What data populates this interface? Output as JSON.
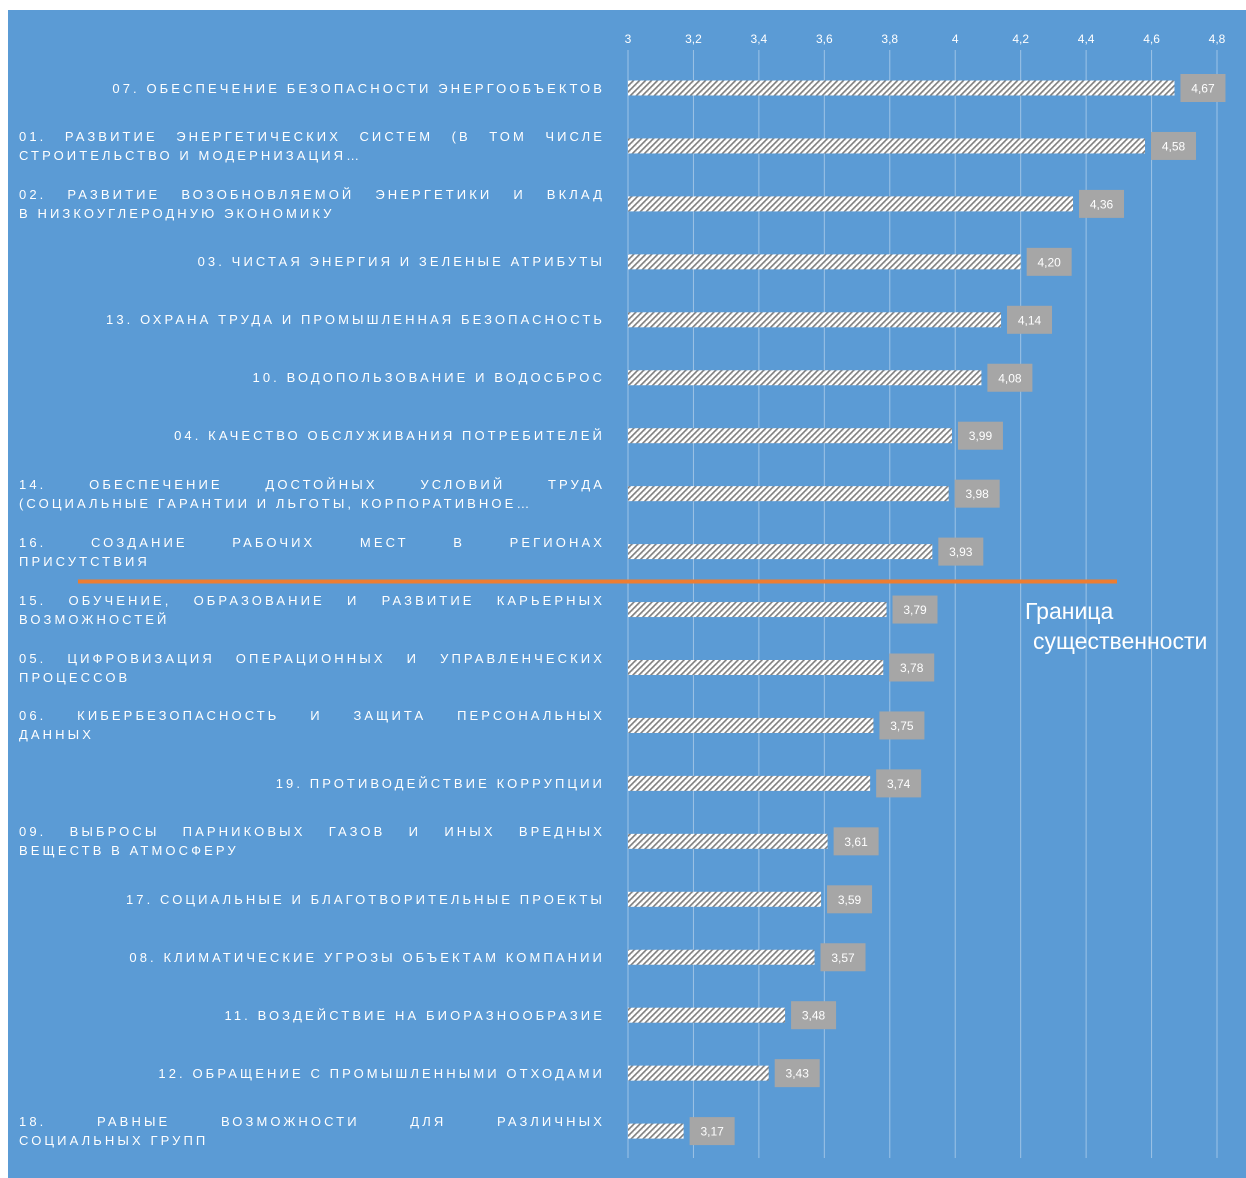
{
  "colors": {
    "background": "#5b9bd5",
    "gridline": "#9dc3e6",
    "bar_pattern_fg": "#7f7f7f",
    "bar_pattern_bg": "#ffffff",
    "label_box": "#a6a6a6",
    "threshold_line": "#ed7d31",
    "text": "#ffffff"
  },
  "threshold": {
    "label_line1": "Граница",
    "label_line2": "существенности"
  },
  "chart_data": {
    "type": "bar",
    "orientation": "horizontal",
    "title": "",
    "xlabel": "",
    "ylabel": "",
    "xlim": [
      3,
      4.8
    ],
    "xticks": [
      "3",
      "3,2",
      "3,4",
      "3,6",
      "3,8",
      "4",
      "4,2",
      "4,4",
      "4,6",
      "4,8"
    ],
    "xtick_values": [
      3,
      3.2,
      3.4,
      3.6,
      3.8,
      4,
      4.2,
      4.4,
      4.6,
      4.8
    ],
    "axis_position": "top",
    "grid": "vertical",
    "legend": "none",
    "categories": [
      "07. ОБЕСПЕЧЕНИЕ БЕЗОПАСНОСТИ ЭНЕРГООБЪЕКТОВ",
      "01. РАЗВИТИЕ ЭНЕРГЕТИЧЕСКИХ СИСТЕМ (В ТОМ ЧИСЛЕ СТРОИТЕЛЬСТВО И МОДЕРНИЗАЦИЯ…",
      "02. РАЗВИТИЕ ВОЗОБНОВЛЯЕМОЙ ЭНЕРГЕТИКИ И ВКЛАД В НИЗКОУГЛЕРОДНУЮ ЭКОНОМИКУ",
      "03. ЧИСТАЯ ЭНЕРГИЯ И ЗЕЛЕНЫЕ АТРИБУТЫ",
      "13. ОХРАНА ТРУДА И ПРОМЫШЛЕННАЯ БЕЗОПАСНОСТЬ",
      "10. ВОДОПОЛЬЗОВАНИЕ И ВОДОСБРОС",
      "04. КАЧЕСТВО ОБСЛУЖИВАНИЯ ПОТРЕБИТЕЛЕЙ",
      "14. ОБЕСПЕЧЕНИЕ ДОСТОЙНЫХ УСЛОВИЙ ТРУДА (СОЦИАЛЬНЫЕ ГАРАНТИИ И ЛЬГОТЫ, КОРПОРАТИВНОЕ…",
      "16. СОЗДАНИЕ РАБОЧИХ МЕСТ В РЕГИОНАХ ПРИСУТСТВИЯ",
      "15. ОБУЧЕНИЕ, ОБРАЗОВАНИЕ И РАЗВИТИЕ КАРЬЕРНЫХ ВОЗМОЖНОСТЕЙ",
      "05. ЦИФРОВИЗАЦИЯ ОПЕРАЦИОННЫХ И УПРАВЛЕНЧЕСКИХ ПРОЦЕССОВ",
      "06. КИБЕРБЕЗОПАСНОСТЬ И ЗАЩИТА ПЕРСОНАЛЬНЫХ ДАННЫХ",
      "19. ПРОТИВОДЕЙСТВИЕ КОРРУПЦИИ",
      "09. ВЫБРОСЫ ПАРНИКОВЫХ ГАЗОВ И ИНЫХ ВРЕДНЫХ ВЕЩЕСТВ В АТМОСФЕРУ",
      "17. СОЦИАЛЬНЫЕ И БЛАГОТВОРИТЕЛЬНЫЕ ПРОЕКТЫ",
      "08. КЛИМАТИЧЕСКИЕ УГРОЗЫ ОБЪЕКТАМ КОМПАНИИ",
      "11. ВОЗДЕЙСТВИЕ НА БИОРАЗНООБРАЗИЕ",
      "12. ОБРАЩЕНИЕ С ПРОМЫШЛЕННЫМИ ОТХОДАМИ",
      "18. РАВНЫЕ ВОЗМОЖНОСТИ ДЛЯ РАЗЛИЧНЫХ СОЦИАЛЬНЫХ ГРУПП"
    ],
    "category_lines": [
      [
        "07. ОБЕСПЕЧЕНИЕ БЕЗОПАСНОСТИ ЭНЕРГООБЪЕКТОВ"
      ],
      [
        "01. РАЗВИТИЕ ЭНЕРГЕТИЧЕСКИХ СИСТЕМ (В ТОМ ЧИСЛЕ",
        "СТРОИТЕЛЬСТВО И МОДЕРНИЗАЦИЯ…"
      ],
      [
        "02. РАЗВИТИЕ ВОЗОБНОВЛЯЕМОЙ ЭНЕРГЕТИКИ И ВКЛАД",
        "В НИЗКОУГЛЕРОДНУЮ ЭКОНОМИКУ"
      ],
      [
        "03. ЧИСТАЯ ЭНЕРГИЯ И ЗЕЛЕНЫЕ АТРИБУТЫ"
      ],
      [
        "13. ОХРАНА ТРУДА И ПРОМЫШЛЕННАЯ БЕЗОПАСНОСТЬ"
      ],
      [
        "10. ВОДОПОЛЬЗОВАНИЕ И ВОДОСБРОС"
      ],
      [
        "04. КАЧЕСТВО ОБСЛУЖИВАНИЯ ПОТРЕБИТЕЛЕЙ"
      ],
      [
        "14. ОБЕСПЕЧЕНИЕ ДОСТОЙНЫХ УСЛОВИЙ ТРУДА",
        "(СОЦИАЛЬНЫЕ ГАРАНТИИ И ЛЬГОТЫ, КОРПОРАТИВНОЕ…"
      ],
      [
        "16. СОЗДАНИЕ РАБОЧИХ МЕСТ В РЕГИОНАХ",
        "ПРИСУТСТВИЯ"
      ],
      [
        "15. ОБУЧЕНИЕ, ОБРАЗОВАНИЕ И РАЗВИТИЕ КАРЬЕРНЫХ",
        "ВОЗМОЖНОСТЕЙ"
      ],
      [
        "05. ЦИФРОВИЗАЦИЯ ОПЕРАЦИОННЫХ И УПРАВЛЕНЧЕСКИХ",
        "ПРОЦЕССОВ"
      ],
      [
        "06. КИБЕРБЕЗОПАСНОСТЬ И ЗАЩИТА ПЕРСОНАЛЬНЫХ",
        "ДАННЫХ"
      ],
      [
        "19. ПРОТИВОДЕЙСТВИЕ КОРРУПЦИИ"
      ],
      [
        "09. ВЫБРОСЫ ПАРНИКОВЫХ ГАЗОВ И ИНЫХ ВРЕДНЫХ",
        "ВЕЩЕСТВ В АТМОСФЕРУ"
      ],
      [
        "17. СОЦИАЛЬНЫЕ И БЛАГОТВОРИТЕЛЬНЫЕ ПРОЕКТЫ"
      ],
      [
        "08. КЛИМАТИЧЕСКИЕ УГРОЗЫ ОБЪЕКТАМ КОМПАНИИ"
      ],
      [
        "11. ВОЗДЕЙСТВИЕ НА БИОРАЗНООБРАЗИЕ"
      ],
      [
        "12. ОБРАЩЕНИЕ С ПРОМЫШЛЕННЫМИ ОТХОДАМИ"
      ],
      [
        "18. РАВНЫЕ ВОЗМОЖНОСТИ ДЛЯ РАЗЛИЧНЫХ",
        "СОЦИАЛЬНЫХ ГРУПП"
      ]
    ],
    "values": [
      4.67,
      4.58,
      4.36,
      4.2,
      4.14,
      4.08,
      3.99,
      3.98,
      3.93,
      3.79,
      3.78,
      3.75,
      3.74,
      3.61,
      3.59,
      3.57,
      3.48,
      3.43,
      3.17
    ],
    "value_labels": [
      "4,67",
      "4,58",
      "4,36",
      "4,20",
      "4,14",
      "4,08",
      "3,99",
      "3,98",
      "3,93",
      "3,79",
      "3,78",
      "3,75",
      "3,74",
      "3,61",
      "3,59",
      "3,57",
      "3,48",
      "3,43",
      "3,17"
    ],
    "threshold_after_index": 8
  }
}
